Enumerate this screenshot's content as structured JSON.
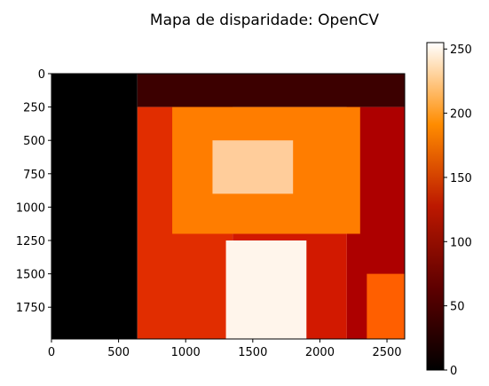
{
  "chart_data": {
    "type": "heatmap",
    "title": "Mapa de disparidade: OpenCV",
    "xlabel": "",
    "ylabel": "",
    "colormap": "gist_heat",
    "xlim": [
      0,
      2632
    ],
    "ylim": [
      1988,
      0
    ],
    "x_ticks": [
      0,
      500,
      1000,
      1500,
      2000,
      2500
    ],
    "y_ticks": [
      0,
      250,
      500,
      750,
      1000,
      1250,
      1500,
      1750
    ],
    "colorbar": {
      "min": 0,
      "max": 255,
      "ticks": [
        0,
        50,
        100,
        150,
        200,
        250
      ]
    },
    "regions": [
      {
        "x": [
          0,
          640
        ],
        "y": [
          0,
          1988
        ],
        "value": 0
      },
      {
        "x": [
          640,
          2632
        ],
        "y": [
          0,
          250
        ],
        "value": 40
      },
      {
        "x": [
          2200,
          2632
        ],
        "y": [
          250,
          1988
        ],
        "value": 115
      },
      {
        "x": [
          640,
          1350
        ],
        "y": [
          250,
          1988
        ],
        "value": 150
      },
      {
        "x": [
          1350,
          2200
        ],
        "y": [
          1200,
          1988
        ],
        "value": 140
      },
      {
        "x": [
          1300,
          1900
        ],
        "y": [
          1250,
          1988
        ],
        "value": 250
      },
      {
        "x": [
          900,
          2300
        ],
        "y": [
          250,
          1200
        ],
        "value": 190
      },
      {
        "x": [
          1200,
          1800
        ],
        "y": [
          500,
          900
        ],
        "value": 230
      },
      {
        "x": [
          2350,
          2632
        ],
        "y": [
          1500,
          1988
        ],
        "value": 175
      }
    ]
  }
}
